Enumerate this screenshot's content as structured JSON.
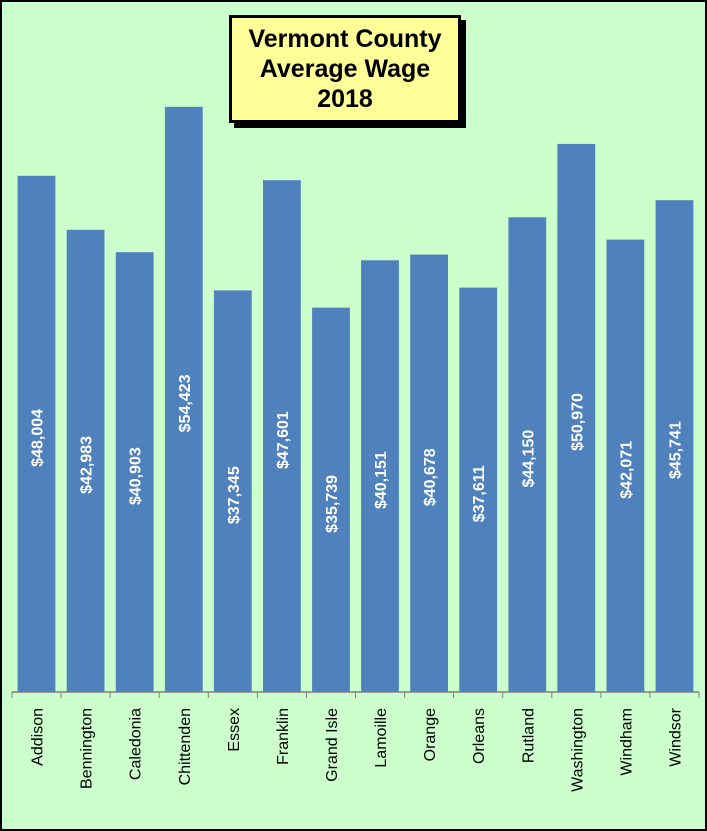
{
  "chart_data": {
    "type": "bar",
    "title": [
      "Vermont County",
      "Average Wage",
      "2018"
    ],
    "categories": [
      "Addison",
      "Bennington",
      "Caledonia",
      "Chittenden",
      "Essex",
      "Franklin",
      "Grand Isle",
      "Lamoille",
      "Orange",
      "Orleans",
      "Rutland",
      "Washington",
      "Windham",
      "Windsor"
    ],
    "values": [
      48004,
      42983,
      40903,
      54423,
      37345,
      47601,
      35739,
      40151,
      40678,
      37611,
      44150,
      50970,
      42071,
      45741
    ],
    "data_labels": [
      "$48,004",
      "$42,983",
      "$40,903",
      "$54,423",
      "$37,345",
      "$47,601",
      "$35,739",
      "$40,151",
      "$40,678",
      "$37,611",
      "$44,150",
      "$50,970",
      "$42,071",
      "$45,741"
    ],
    "xlabel": "",
    "ylabel": "",
    "ylim": [
      0,
      55800
    ],
    "grid": false,
    "legend": "none",
    "colors": {
      "bar": "#4f81bd",
      "plot_background": "#ccffcc",
      "title_background": "#ffff99",
      "label_text": "#ffffff",
      "axis": "#7f7f7f"
    }
  }
}
